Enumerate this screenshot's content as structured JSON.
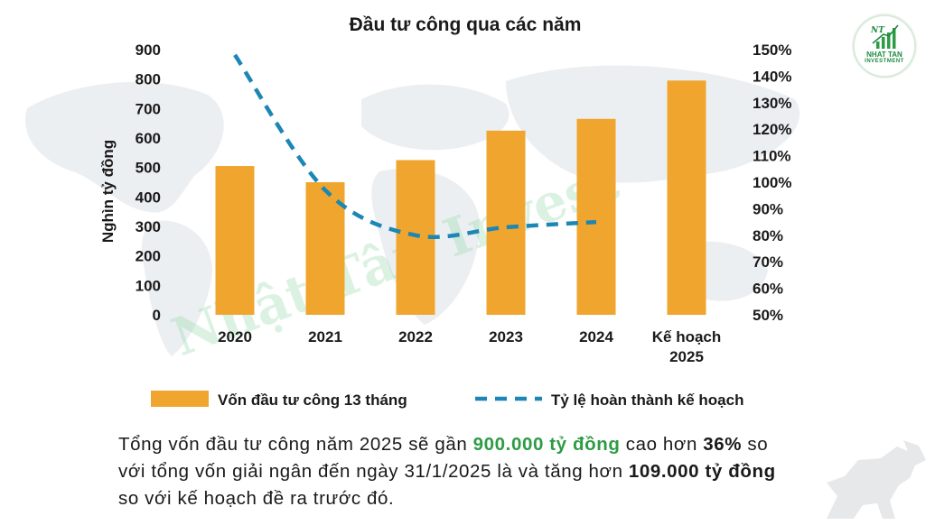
{
  "chart_data": {
    "type": "bar+line",
    "title": "Đầu tư công qua các năm",
    "categories": [
      "2020",
      "2021",
      "2022",
      "2023",
      "2024",
      "Kế hoạch\n2025"
    ],
    "ylabel": "Nghìn tỷ đồng",
    "ylim": [
      0,
      900
    ],
    "yticks": [
      "0",
      "100",
      "200",
      "300",
      "400",
      "500",
      "600",
      "700",
      "800",
      "900"
    ],
    "y2lim": [
      50,
      150
    ],
    "y2ticks": [
      "50%",
      "60%",
      "70%",
      "80%",
      "90%",
      "100%",
      "110%",
      "120%",
      "130%",
      "140%",
      "150%"
    ],
    "series": [
      {
        "name": "Vốn đầu tư công 13 tháng",
        "type": "bar",
        "axis": "left",
        "color": "#f0a52e",
        "values": [
          505,
          450,
          525,
          625,
          665,
          795
        ]
      },
      {
        "name": "Tỷ lệ hoàn thành kế hoạch",
        "type": "line",
        "style": "dashed",
        "axis": "right",
        "color": "#1c86b5",
        "values": [
          148,
          97,
          80,
          83,
          85,
          null
        ]
      }
    ],
    "legend": "bottom",
    "grid": false
  },
  "watermark": "Nhật Tân Invest",
  "logo": {
    "line1": "NHAT TAN",
    "line2": "INVESTMENT",
    "mark": "NT"
  },
  "caption": {
    "p1": "Tổng vốn đầu tư công năm 2025 sẽ gần ",
    "h1": "900.000 tỷ đồng",
    "p2": " cao hơn ",
    "h2": "36%",
    "p3": " so với tổng vốn giải ngân đến ngày 31/1/2025 là và tăng hơn ",
    "h3": "109.000 tỷ đồng",
    "p4": " so với kế hoạch đề ra trước đó."
  },
  "colors": {
    "bar": "#f0a52e",
    "line": "#1c86b5",
    "highlight": "#2e9b45"
  }
}
